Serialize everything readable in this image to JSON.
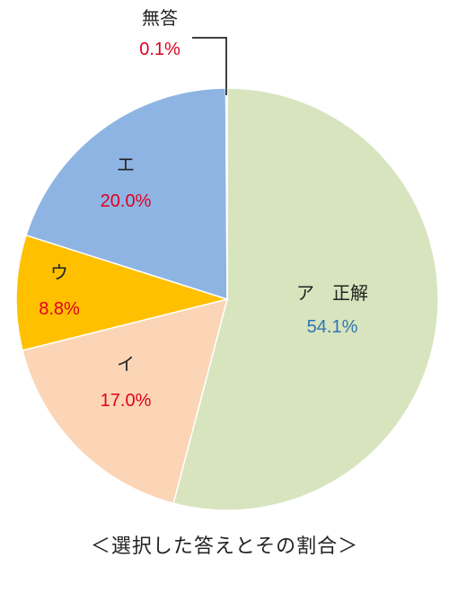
{
  "chart_data": {
    "type": "pie",
    "slices": [
      {
        "label": "ア　正解",
        "value": 54.1,
        "value_label": "54.1%",
        "color": "#d7e4bd",
        "value_color": "#2e75b6"
      },
      {
        "label": "イ",
        "value": 17.0,
        "value_label": "17.0%",
        "color": "#fbd5b5",
        "value_color": "#e0001f"
      },
      {
        "label": "ウ",
        "value": 8.8,
        "value_label": "8.8%",
        "color": "#ffc000",
        "value_color": "#e0001f"
      },
      {
        "label": "エ",
        "value": 20.0,
        "value_label": "20.0%",
        "color": "#8eb4e3",
        "value_color": "#e0001f"
      },
      {
        "label": "無答",
        "value": 0.1,
        "value_label": "0.1%",
        "color": "#c9cde6",
        "value_color": "#e0001f"
      }
    ],
    "start": "12 o'clock, clockwise",
    "legend": "none"
  },
  "caption": "＜選択した答えとその割合＞"
}
